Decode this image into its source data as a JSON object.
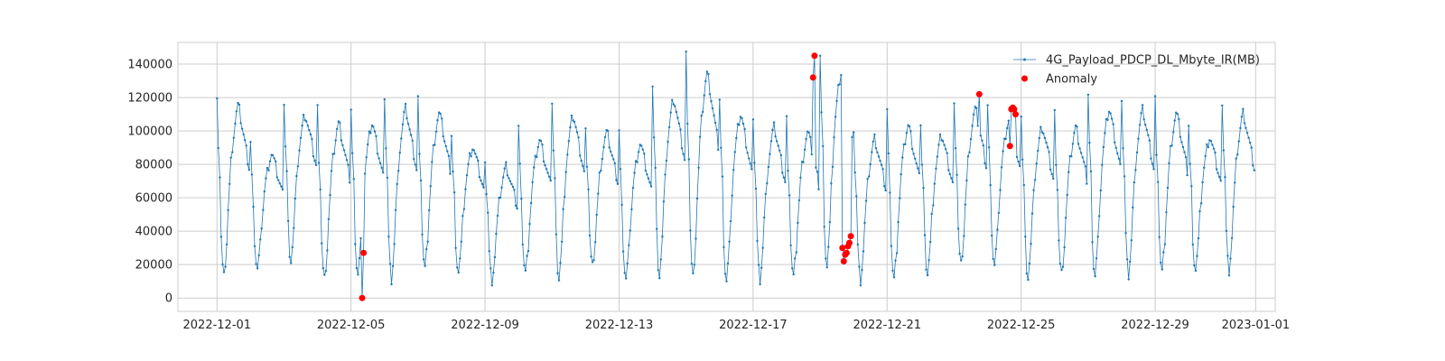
{
  "chart_data": {
    "type": "line",
    "x_type": "datetime",
    "xlim": [
      "2022-11-29T20:00",
      "2023-01-01T14:00"
    ],
    "xticks": [
      "2022-12-01",
      "2022-12-05",
      "2022-12-09",
      "2022-12-13",
      "2022-12-17",
      "2022-12-21",
      "2022-12-25",
      "2022-12-29",
      "2023-01-01"
    ],
    "ylim": [
      -8000,
      153000
    ],
    "yticks": [
      0,
      20000,
      40000,
      60000,
      80000,
      100000,
      120000,
      140000
    ],
    "grid": true,
    "legend_position": "top-right",
    "line_color": "#1f77b4",
    "anomaly_color": "#ff0000",
    "series": [
      {
        "name": "4G_Payload_PDCP_DL_Mbyte_IR(MB)",
        "marker": "point",
        "daily_profile": [
          105000,
          79000,
          63000,
          32000,
          17000,
          12000,
          20000,
          30000,
          46000,
          58000,
          70000,
          78000,
          84000,
          90000,
          95000,
          98000,
          96000,
          92000,
          88000,
          84000,
          80000,
          76000,
          72000,
          68000
        ],
        "daily_peaks": [
          123000,
          92000,
          117000,
          112000,
          112000,
          121000,
          118000,
          97000,
          84000,
          101000,
          117000,
          105000,
          99000,
          128000,
          144000,
          118000,
          109000,
          106000,
          145000,
          102000,
          111000,
          104000,
          120000,
          114000,
          110000,
          109000,
          121000,
          120000,
          118000,
          103000,
          118000
        ],
        "daily_troughs": [
          12000,
          17000,
          23000,
          11000,
          14000,
          11000,
          17000,
          16000,
          11000,
          15000,
          12000,
          18000,
          11000,
          14000,
          12000,
          10000,
          11000,
          12000,
          19000,
          11000,
          11000,
          15000,
          19000,
          19000,
          13000,
          14000,
          13000,
          14000,
          15000,
          17000,
          17000
        ]
      },
      {
        "name": "Anomaly",
        "marker": "dot",
        "points": [
          {
            "x": "2022-12-05T09:00",
            "y": 27000
          },
          {
            "x": "2022-12-05T08:00",
            "y": 0
          },
          {
            "x": "2022-12-18T19:00",
            "y": 132000
          },
          {
            "x": "2022-12-18T20:00",
            "y": 145000
          },
          {
            "x": "2022-12-19T16:00",
            "y": 30000
          },
          {
            "x": "2022-12-19T17:00",
            "y": 22000
          },
          {
            "x": "2022-12-19T18:00",
            "y": 26000
          },
          {
            "x": "2022-12-19T19:00",
            "y": 27000
          },
          {
            "x": "2022-12-19T20:00",
            "y": 31000
          },
          {
            "x": "2022-12-19T21:00",
            "y": 33000
          },
          {
            "x": "2022-12-19T22:00",
            "y": 37000
          },
          {
            "x": "2022-12-23T18:00",
            "y": 122000
          },
          {
            "x": "2022-12-24T16:00",
            "y": 91000
          },
          {
            "x": "2022-12-24T17:00",
            "y": 113000
          },
          {
            "x": "2022-12-24T18:00",
            "y": 114000
          },
          {
            "x": "2022-12-24T19:00",
            "y": 113000
          },
          {
            "x": "2022-12-24T20:00",
            "y": 110000
          }
        ]
      }
    ]
  }
}
